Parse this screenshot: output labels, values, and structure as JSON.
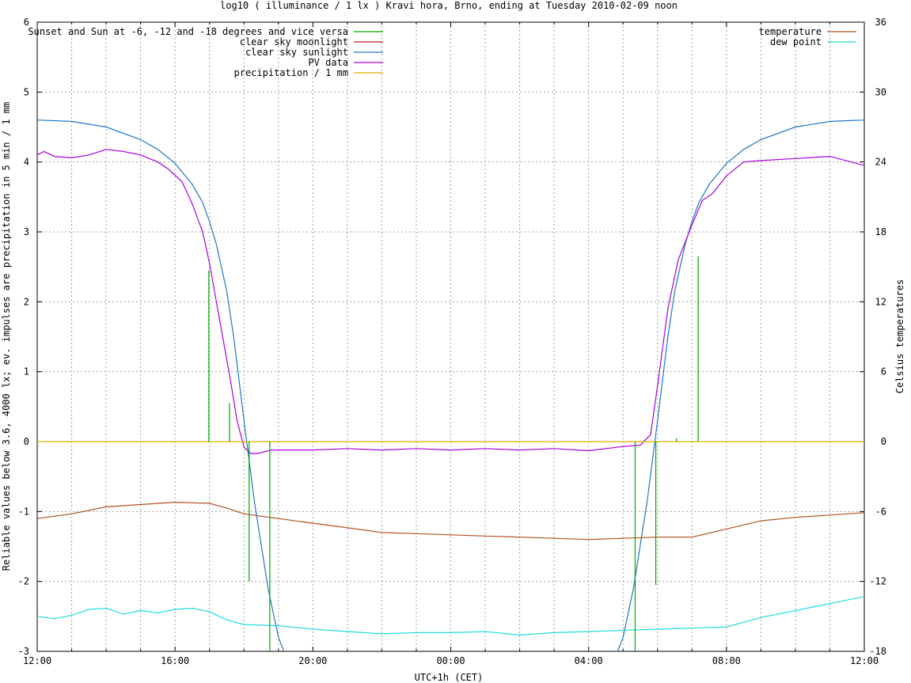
{
  "chart_data": {
    "type": "line",
    "title": "log10 ( illuminance / 1 lx ) Kravi hora, Brno, ending at Tuesday 2010-02-09 noon",
    "xlabel": "UTC+1h (CET)",
    "ylabel": "Reliable values below 3.6, 4000 lx; ev. impulses are precipitation in 5 min / 1 mm",
    "y2label": "Celsius temperatures",
    "x_unit": "hours since 12:00",
    "xlim": [
      0,
      24
    ],
    "ylim": [
      -3,
      6
    ],
    "y2lim": [
      -18,
      36
    ],
    "grid": true,
    "x_tick_labels": [
      "12:00",
      "16:00",
      "20:00",
      "00:00",
      "04:00",
      "08:00",
      "12:00"
    ],
    "y_tick_labels": [
      "-3",
      "-2",
      "-1",
      "0",
      "1",
      "2",
      "3",
      "4",
      "5",
      "6"
    ],
    "y2_tick_labels": [
      "-18",
      "-12",
      "-6",
      "0",
      "6",
      "12",
      "18",
      "24",
      "30",
      "36"
    ],
    "legend_left": [
      {
        "name": "Sunset and Sun at -6, -12 and -18 degrees and vice versa",
        "color": "#00aa00"
      },
      {
        "name": "clear sky moonlight",
        "color": "#b22222"
      },
      {
        "name": "clear sky sunlight",
        "color": "#1f77c4"
      },
      {
        "name": "PV data",
        "color": "#aa00dd"
      },
      {
        "name": "precipitation / 1 mm",
        "color": "#e0b000"
      }
    ],
    "legend_right": [
      {
        "name": "temperature",
        "color": "#b4501e"
      },
      {
        "name": "dew point",
        "color": "#22dddd"
      }
    ],
    "series": [
      {
        "name": "clear sky sunlight",
        "axis": "left",
        "color": "#1f77c4",
        "x": [
          0,
          1,
          2,
          3,
          3.5,
          4,
          4.5,
          4.8,
          5.0,
          5.2,
          5.5,
          5.7,
          6.0,
          6.3,
          6.7,
          7.0,
          7.2,
          16.8,
          17.0,
          17.3,
          17.7,
          18.0,
          18.3,
          18.5,
          18.8,
          19.0,
          19.2,
          19.5,
          20,
          20.5,
          21,
          22,
          23,
          24
        ],
        "y": [
          4.6,
          4.58,
          4.5,
          4.32,
          4.18,
          3.98,
          3.68,
          3.42,
          3.15,
          2.82,
          2.15,
          1.5,
          0.3,
          -0.85,
          -2.1,
          -2.8,
          -3.05,
          -3.05,
          -2.8,
          -2.1,
          -0.85,
          0.3,
          1.5,
          2.15,
          2.82,
          3.15,
          3.42,
          3.68,
          3.98,
          4.18,
          4.32,
          4.5,
          4.58,
          4.6
        ]
      },
      {
        "name": "PV data",
        "axis": "left",
        "color": "#aa00dd",
        "x": [
          0,
          0.2,
          0.5,
          1,
          1.5,
          2,
          2.5,
          3,
          3.5,
          3.8,
          4.2,
          4.5,
          4.8,
          5.0,
          5.2,
          5.4,
          5.6,
          5.8,
          6.0,
          6.2,
          6.4,
          6.8,
          7.2,
          8,
          9,
          10,
          11,
          12,
          13,
          14,
          15,
          16,
          16.5,
          17.0,
          17.5,
          17.8,
          18.0,
          18.3,
          18.6,
          19.0,
          19.3,
          19.6,
          20.0,
          20.5,
          21,
          22,
          23,
          24
        ],
        "y": [
          4.1,
          4.15,
          4.08,
          4.06,
          4.1,
          4.18,
          4.15,
          4.1,
          4.0,
          3.9,
          3.72,
          3.4,
          3.0,
          2.55,
          2.0,
          1.45,
          0.9,
          0.3,
          -0.08,
          -0.17,
          -0.17,
          -0.12,
          -0.12,
          -0.12,
          -0.1,
          -0.12,
          -0.1,
          -0.12,
          -0.1,
          -0.12,
          -0.1,
          -0.13,
          -0.1,
          -0.07,
          -0.05,
          0.1,
          0.8,
          1.9,
          2.6,
          3.1,
          3.45,
          3.55,
          3.8,
          4.0,
          4.02,
          4.05,
          4.08,
          3.95
        ]
      },
      {
        "name": "temperature",
        "axis": "right",
        "color": "#b4501e",
        "x": [
          0,
          1,
          2,
          3,
          4,
          5,
          5.5,
          6,
          7,
          8,
          9,
          10,
          11,
          12,
          13,
          14,
          15,
          16,
          17,
          18,
          19,
          20,
          21,
          22,
          23,
          24
        ],
        "y": [
          -6.6,
          -6.2,
          -5.6,
          -5.4,
          -5.2,
          -5.3,
          -5.7,
          -6.2,
          -6.6,
          -7.0,
          -7.4,
          -7.8,
          -7.9,
          -8.0,
          -8.1,
          -8.2,
          -8.3,
          -8.4,
          -8.3,
          -8.2,
          -8.2,
          -7.5,
          -6.8,
          -6.5,
          -6.3,
          -6.1
        ]
      },
      {
        "name": "dew point",
        "axis": "right",
        "color": "#22dddd",
        "x": [
          0,
          0.5,
          1,
          1.5,
          2,
          2.5,
          3,
          3.5,
          4,
          4.5,
          5,
          5.5,
          6,
          7,
          8,
          9,
          10,
          11,
          12,
          13,
          14,
          15,
          16,
          17,
          18,
          19,
          20,
          21,
          22,
          23,
          24
        ],
        "y": [
          -15.0,
          -15.2,
          -14.9,
          -14.4,
          -14.3,
          -14.8,
          -14.5,
          -14.7,
          -14.4,
          -14.3,
          -14.6,
          -15.3,
          -15.7,
          -15.8,
          -16.1,
          -16.3,
          -16.5,
          -16.4,
          -16.4,
          -16.3,
          -16.6,
          -16.4,
          -16.3,
          -16.2,
          -16.1,
          -16.0,
          -15.9,
          -15.1,
          -14.5,
          -13.9,
          -13.3
        ]
      },
      {
        "name": "precipitation / 1 mm",
        "axis": "left",
        "color": "#e0b000",
        "x": [
          0,
          24
        ],
        "y": [
          0,
          0
        ]
      }
    ],
    "sun_markers": [
      {
        "x": 4.98,
        "top": 2.45
      },
      {
        "x": 5.58,
        "top": 0.55
      },
      {
        "x": 6.15,
        "top": -2.0
      },
      {
        "x": 6.75,
        "top": -3.0
      },
      {
        "x": 17.35,
        "top": -3.0
      },
      {
        "x": 17.95,
        "top": -2.05
      },
      {
        "x": 18.55,
        "top": 0.05
      },
      {
        "x": 19.18,
        "top": 2.65
      }
    ]
  }
}
